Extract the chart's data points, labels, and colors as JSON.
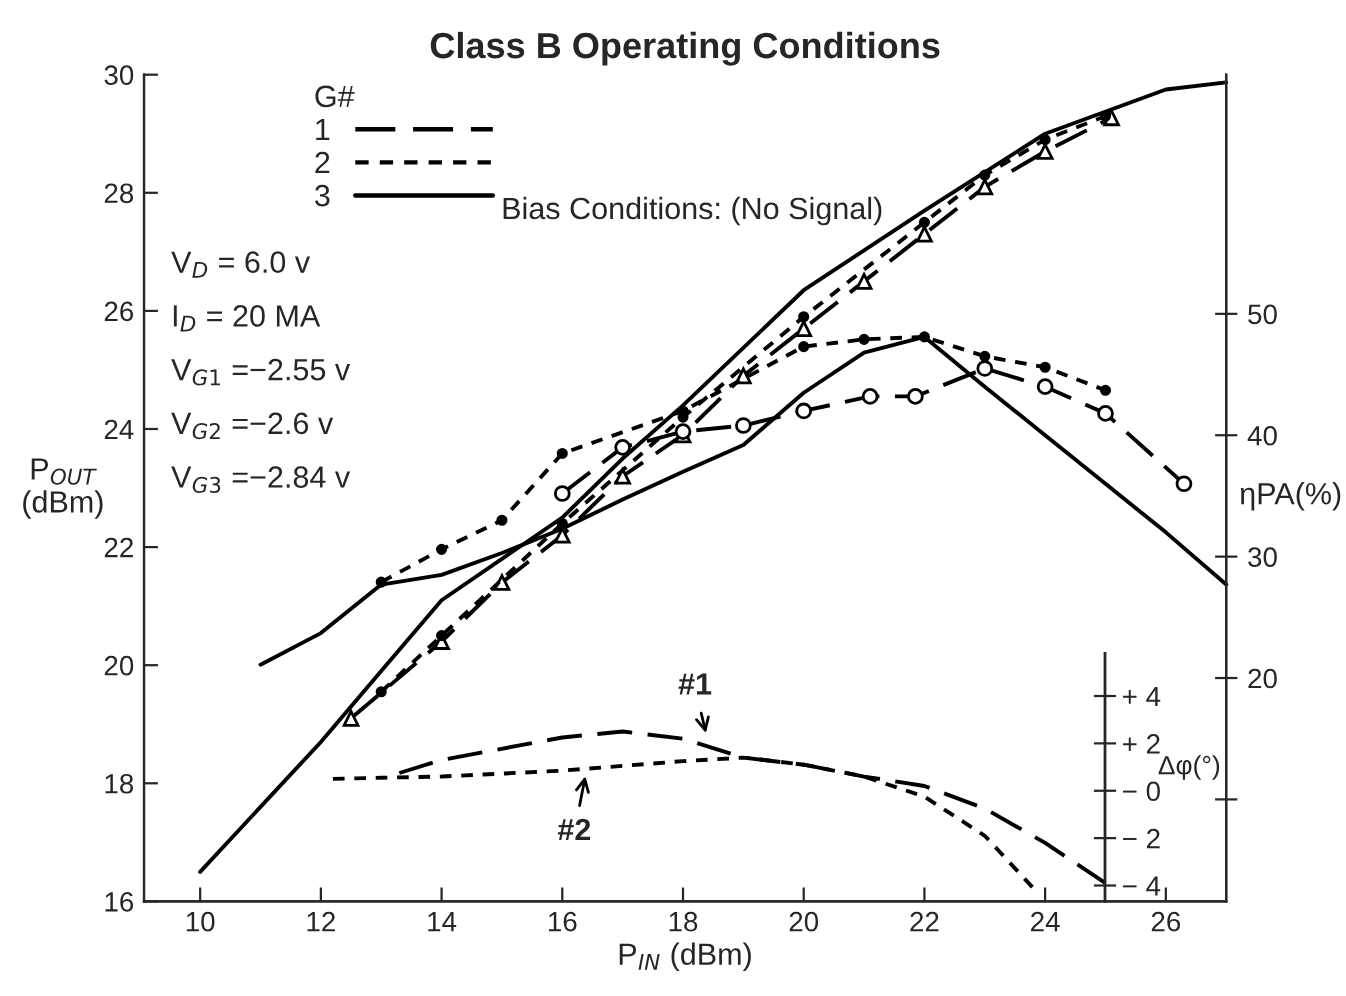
{
  "chart_data": {
    "type": "line",
    "title": "Class B Operating Conditions",
    "xlabel": "P$_{IN}$ (dBm)",
    "ylabel": "P$_{OUT}$\n(dBm)",
    "y2label": "ηPA(%)",
    "y3label": "Δφ(°)",
    "legend_title": "G#",
    "legend": "top left",
    "grid": false,
    "xlim": [
      9.07,
      27.0
    ],
    "xticks": [
      10,
      12,
      14,
      16,
      18,
      20,
      22,
      24,
      26
    ],
    "ylim": [
      16,
      30
    ],
    "yticks": [
      16,
      18,
      20,
      22,
      24,
      26,
      28,
      30
    ],
    "y2lim": [
      1.6,
      69.7
    ],
    "y2ticks": [
      {
        "value": 10,
        "label": null
      },
      20,
      30,
      40,
      50
    ],
    "y3lim": [
      -4.67,
      5.8
    ],
    "y3ticks": [
      {
        "value": 4,
        "label": "+ 4"
      },
      {
        "value": 2,
        "label": "+ 2"
      },
      {
        "value": 0,
        "label": "− 0"
      },
      {
        "value": -2,
        "label": "− 2"
      },
      {
        "value": -4,
        "label": "− 4"
      }
    ],
    "annotations": [
      "Bias Conditions: (No Signal)",
      "V$_{D}$ = 6.0 v",
      "I$_{D}$ = 20 MA",
      "V$_{G1}$ =−2.55 v",
      "V$_{G2}$ =−2.6 v",
      "V$_{G3}$ =−2.84 v"
    ],
    "series": [
      {
        "name": "1",
        "color": "#000000",
        "line_style": "dashed",
        "marker": "triangle",
        "x": [
          12.5,
          14,
          15,
          16,
          17,
          18,
          19,
          20,
          21,
          22,
          23,
          24,
          25.1
        ],
        "values": [
          19.1,
          20.4,
          21.4,
          22.2,
          23.2,
          23.9,
          24.9,
          25.7,
          26.5,
          27.3,
          28.1,
          28.7,
          29.27
        ]
      },
      {
        "name": "2",
        "color": "#000000",
        "line_style": "dotted",
        "marker": "circle",
        "x": [
          13,
          14,
          16,
          18,
          20,
          22,
          23,
          24,
          25
        ],
        "values": [
          19.55,
          20.5,
          22.4,
          24.2,
          25.9,
          27.5,
          28.3,
          28.9,
          29.3
        ]
      },
      {
        "name": "3",
        "color": "#000000",
        "line_style": "solid",
        "marker": "none",
        "x": [
          10,
          11,
          12,
          13,
          14,
          15,
          16,
          17,
          18,
          20,
          22,
          24,
          26,
          27
        ],
        "values": [
          16.5,
          17.6,
          18.7,
          19.9,
          21.1,
          21.8,
          22.5,
          23.5,
          24.4,
          26.35,
          27.7,
          29.0,
          29.75,
          29.87
        ]
      },
      {
        "axis": "y2",
        "color": "#000000",
        "line_style": "dashed",
        "marker": "circle",
        "x": [
          16,
          17,
          18,
          19,
          20,
          21.1,
          21.85,
          23,
          24,
          25,
          26.3
        ],
        "values": [
          35.2,
          39,
          40.3,
          40.8,
          42,
          43.2,
          43.2,
          45.5,
          44,
          41.8,
          36
        ]
      },
      {
        "axis": "y2",
        "color": "#000000",
        "line_style": "dotted",
        "marker": "circle",
        "x": [
          13,
          14,
          15,
          16,
          18,
          20,
          21,
          22,
          23,
          24,
          25
        ],
        "values": [
          27.9,
          30.6,
          33,
          38.5,
          42,
          47.3,
          47.9,
          48.1,
          46.5,
          45.6,
          43.7
        ]
      },
      {
        "axis": "y2",
        "color": "#000000",
        "line_style": "solid",
        "marker": "none",
        "x": [
          11,
          12,
          13,
          14,
          15,
          16,
          17,
          18,
          19,
          20,
          21,
          22,
          23,
          24,
          25,
          26,
          27
        ],
        "values": [
          21.1,
          23.7,
          27.7,
          28.5,
          30.3,
          32.3,
          34.7,
          37,
          39.2,
          43.5,
          46.8,
          48.1,
          44,
          40,
          36,
          32,
          27.7
        ]
      },
      {
        "name": "#1",
        "axis": "y3",
        "color": "#000000",
        "line_style": "dashed",
        "marker": "none",
        "x": [
          13.3,
          14,
          16,
          17,
          18,
          19,
          20,
          21,
          22,
          23,
          24,
          25
        ],
        "values": [
          0.75,
          1.3,
          2.25,
          2.5,
          2.2,
          1.4,
          1.1,
          0.6,
          0.2,
          -0.75,
          -2.2,
          -3.9
        ]
      },
      {
        "name": "#2",
        "axis": "y3",
        "color": "#000000",
        "line_style": "dotted",
        "marker": "none",
        "x": [
          12.2,
          13,
          14,
          16,
          18,
          19,
          20,
          21,
          22,
          23,
          23.8
        ],
        "values": [
          0.5,
          0.55,
          0.6,
          0.85,
          1.25,
          1.4,
          1.1,
          0.6,
          -0.25,
          -1.9,
          -4.1
        ]
      }
    ]
  }
}
